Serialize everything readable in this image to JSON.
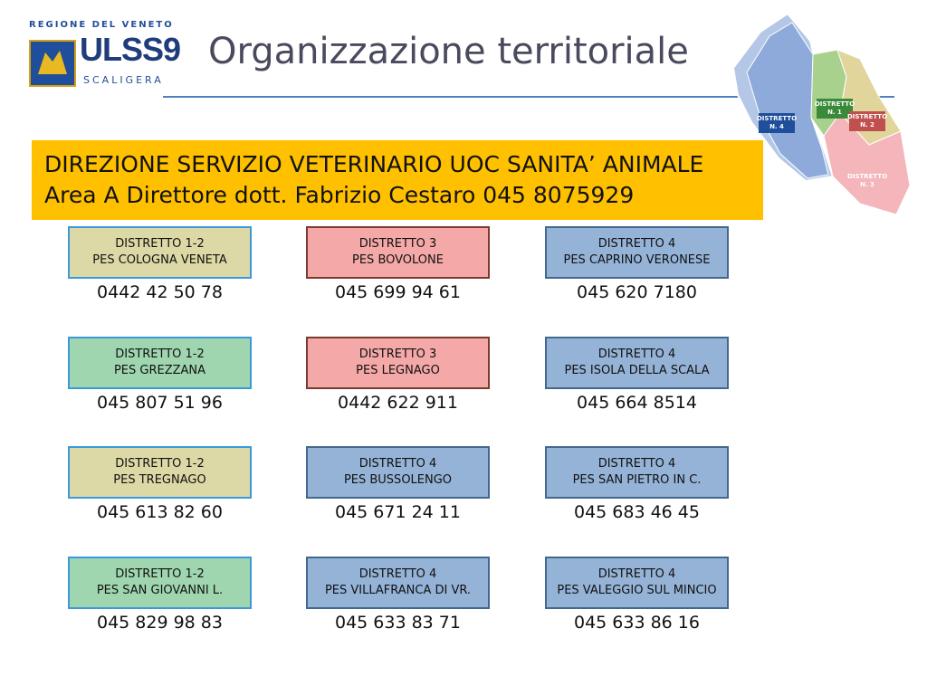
{
  "header": {
    "logo_region": "REGIONE DEL VENETO",
    "logo_name": "ULSS9",
    "logo_sub": "SCALIGERA",
    "title": "Organizzazione territoriale"
  },
  "banner": {
    "line1": "DIREZIONE SERVIZIO VETERINARIO UOC SANITA’ ANIMALE",
    "line2": "Area A Direttore dott. Fabrizio Cestaro  045 8075929"
  },
  "map": {
    "labels": [
      {
        "line1": "DISTRETTO",
        "line2": "N. 4"
      },
      {
        "line1": "DISTRETTO",
        "line2": "N. 1"
      },
      {
        "line1": "DISTRETTO",
        "line2": "N. 2"
      },
      {
        "line1": "DISTRETTO",
        "line2": "N. 3"
      }
    ]
  },
  "boxes": [
    {
      "district": "DISTRETTO 1-2",
      "pes": "PES COLOGNA VENETA",
      "phone": "0442 42 50 78",
      "color": "#ddd9a6"
    },
    {
      "district": "DISTRETTO 3",
      "pes": "PES BOVOLONE",
      "phone": "045 699 94 61",
      "color": "#f4a9a8"
    },
    {
      "district": "DISTRETTO 4",
      "pes": "PES CAPRINO VERONESE",
      "phone": "045 620 7180",
      "color": "#95b3d7"
    },
    {
      "district": "DISTRETTO 1-2",
      "pes": "PES GREZZANA",
      "phone": "045 807 51 96",
      "color": "#9fd6b0"
    },
    {
      "district": "DISTRETTO 3",
      "pes": "PES LEGNAGO",
      "phone": "0442 622 911",
      "color": "#f4a9a8"
    },
    {
      "district": "DISTRETTO 4",
      "pes": "PES ISOLA DELLA SCALA",
      "phone": "045 664 8514",
      "color": "#95b3d7"
    },
    {
      "district": "DISTRETTO 1-2",
      "pes": "PES TREGNAGO",
      "phone": "045 613 82 60",
      "color": "#ddd9a6"
    },
    {
      "district": "DISTRETTO 4",
      "pes": "PES BUSSOLENGO",
      "phone": "045 671 24 11",
      "color": "#95b3d7"
    },
    {
      "district": "DISTRETTO 4",
      "pes": "PES SAN PIETRO IN C.",
      "phone": "045 683 46 45",
      "color": "#95b3d7"
    },
    {
      "district": "DISTRETTO 1-2",
      "pes": "PES SAN GIOVANNI L.",
      "phone": "045 829 98 83",
      "color": "#9fd6b0"
    },
    {
      "district": "DISTRETTO 4",
      "pes": "PES VILLAFRANCA DI VR.",
      "phone": "045 633 83 71",
      "color": "#95b3d7"
    },
    {
      "district": "DISTRETTO 4",
      "pes": "PES VALEGGIO SUL MINCIO",
      "phone": "045 633 86 16",
      "color": "#95b3d7"
    }
  ]
}
